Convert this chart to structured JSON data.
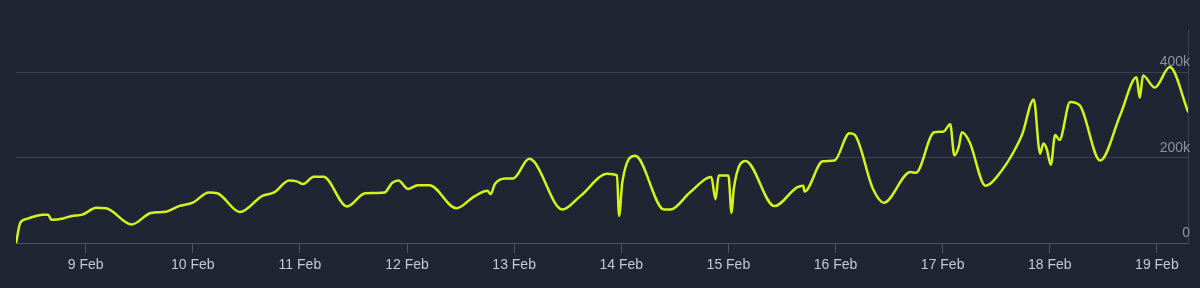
{
  "chart_data": {
    "type": "line",
    "x": [
      "--02-08T08:24",
      "--02-08T09:22",
      "--02-08T10:48",
      "--02-08T14:24",
      "--02-08T15:36",
      "--02-08T16:19",
      "--02-08T18:58",
      "--02-08T20:53",
      "--02-08T23:17",
      "--02-09T02:24",
      "--02-09T04:34",
      "--02-09T10:19",
      "--02-09T14:38",
      "--02-09T18:00",
      "--02-09T20:53",
      "--02-10T00:00",
      "--02-10T03:36",
      "--02-10T05:31",
      "--02-10T10:34",
      "--02-10T15:36",
      "--02-10T18:14",
      "--02-10T21:36",
      "--02-10T23:17",
      "--02-11T00:43",
      "--02-11T03:07",
      "--02-11T05:17",
      "--02-11T10:34",
      "--02-11T14:38",
      "--02-11T18:58",
      "--02-11T20:38",
      "--02-11T22:05",
      "--02-12T00:14",
      "--02-12T02:24",
      "--02-12T05:02",
      "--02-12T11:02",
      "--02-12T15:07",
      "--02-12T18:00",
      "--02-12T18:43",
      "--02-12T19:41",
      "--02-12T22:05",
      "--02-12T23:46",
      "--02-13T03:22",
      "--02-13T04:34",
      "--02-13T10:48",
      "--02-13T14:53",
      "--02-13T20:53",
      "--02-13T23:02",
      "--02-13T23:31",
      "--02-14T00:14",
      "--02-14T03:07",
      "--02-14T09:36",
      "--02-14T11:02",
      "--02-14T15:22",
      "--02-14T20:10",
      "--02-14T21:07",
      "--02-14T21:50",
      "--02-15T00:00",
      "--02-15T00:43",
      "--02-15T01:12",
      "--02-15T03:50",
      "--02-15T10:19",
      "--02-15T15:22",
      "--02-15T16:48",
      "--02-15T17:02",
      "--02-15T21:07",
      "--02-15T23:46",
      "--02-16T03:07",
      "--02-16T04:19",
      "--02-16T08:24",
      "--02-16T10:48",
      "--02-16T16:48",
      "--02-16T18:00",
      "--02-16T22:05",
      "--02-17T00:14",
      "--02-17T01:41",
      "--02-17T02:38",
      "--02-17T03:36",
      "--02-17T04:19",
      "--02-17T06:00",
      "--02-17T09:36",
      "--02-17T11:46",
      "--02-17T17:46",
      "--02-17T20:24",
      "--02-17T21:50",
      "--02-17T22:34",
      "--02-17T23:17",
      "--02-18T00:14",
      "--02-18T01:12",
      "--02-18T02:10",
      "--02-18T04:34",
      "--02-18T06:43",
      "--02-18T11:17",
      "--02-18T15:50",
      "--02-18T19:26",
      "--02-18T20:10",
      "--02-18T20:53",
      "--02-18T23:31",
      "--02-19T02:53",
      "--02-19T06:58"
    ],
    "series": [
      {
        "color": "#d4f21c",
        "values": [
          0,
          48000,
          57000,
          67000,
          67000,
          55000,
          58000,
          64000,
          67000,
          83000,
          82000,
          44000,
          71000,
          74000,
          87000,
          95000,
          119000,
          117000,
          73000,
          111000,
          119000,
          147000,
          145000,
          139000,
          156000,
          156000,
          86000,
          117000,
          119000,
          141000,
          147000,
          127000,
          136000,
          136000,
          82000,
          110000,
          123000,
          115000,
          139000,
          152000,
          152000,
          198000,
          190000,
          79000,
          111000,
          163000,
          159000,
          64000,
          143000,
          205000,
          79000,
          79000,
          119000,
          155000,
          103000,
          159000,
          159000,
          71000,
          127000,
          193000,
          87000,
          131000,
          135000,
          121000,
          192000,
          194000,
          258000,
          254000,
          127000,
          95000,
          167000,
          165000,
          260000,
          262000,
          279000,
          206000,
          226000,
          260000,
          238000,
          135000,
          151000,
          254000,
          337000,
          210000,
          234000,
          222000,
          184000,
          254000,
          242000,
          331000,
          323000,
          194000,
          302000,
          389000,
          341000,
          393000,
          365000,
          413000,
          309000
        ]
      }
    ],
    "xlim": [
      "--02-08T08:24",
      "--02-19T06:58"
    ],
    "xticks": [
      {
        "value": "--02-09",
        "label": "9 Feb"
      },
      {
        "value": "--02-10",
        "label": "10 Feb"
      },
      {
        "value": "--02-11",
        "label": "11 Feb"
      },
      {
        "value": "--02-12",
        "label": "12 Feb"
      },
      {
        "value": "--02-13",
        "label": "13 Feb"
      },
      {
        "value": "--02-14",
        "label": "14 Feb"
      },
      {
        "value": "--02-15",
        "label": "15 Feb"
      },
      {
        "value": "--02-16",
        "label": "16 Feb"
      },
      {
        "value": "--02-17",
        "label": "17 Feb"
      },
      {
        "value": "--02-18",
        "label": "18 Feb"
      },
      {
        "value": "--02-19",
        "label": "19 Feb"
      }
    ],
    "ylim": [
      0,
      500000
    ],
    "yticks": [
      0,
      {
        "value": 200000,
        "label": "200k"
      },
      {
        "value": 400000,
        "label": "400k"
      }
    ],
    "grid": "y",
    "legend": false,
    "marker": "none",
    "line_style": "solid"
  }
}
